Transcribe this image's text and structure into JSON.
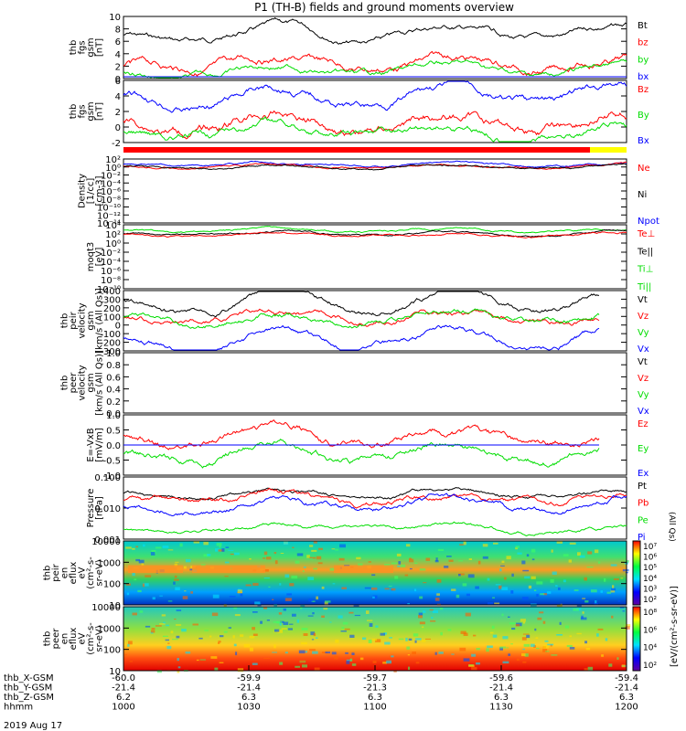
{
  "title": "P1 (TH-B) fields and ground moments overview",
  "date_label": "2019 Aug 17",
  "colors": {
    "black": "#000000",
    "red": "#ff0000",
    "green": "#00dd00",
    "blue": "#0000ff",
    "yellow": "#ffff00"
  },
  "bottom_axis": {
    "rows": [
      {
        "label": "thb_X-GSM",
        "values": [
          "-60.0",
          "-59.9",
          "-59.7",
          "-59.6",
          "-59.4"
        ]
      },
      {
        "label": "thb_Y-GSM",
        "values": [
          "-21.4",
          "-21.4",
          "-21.3",
          "-21.4",
          "-21.4"
        ]
      },
      {
        "label": "thb_Z-GSM",
        "values": [
          "6.2",
          "6.3",
          "6.3",
          "6.3",
          "6.3"
        ]
      },
      {
        "label": "hhmm",
        "values": [
          "1000",
          "1030",
          "1100",
          "1130",
          "1200"
        ]
      }
    ]
  },
  "panels": [
    {
      "id": "fgs",
      "ylabel": [
        "thb",
        "fgs",
        "gsm",
        "[nT]"
      ],
      "ticks": [
        "10",
        "8",
        "6",
        "4",
        "2",
        "0"
      ],
      "legend": [
        {
          "text": "Bt",
          "color": "black"
        },
        {
          "text": "bz",
          "color": "red"
        },
        {
          "text": "by",
          "color": "green"
        },
        {
          "text": "bx",
          "color": "blue"
        }
      ]
    },
    {
      "id": "fgl",
      "ylabel": [
        "thb",
        "fgs",
        "gsm",
        "[nT]"
      ],
      "ticks": [
        "6",
        "4",
        "2",
        "0",
        "-2"
      ],
      "legend": [
        {
          "text": "Bz",
          "color": "red"
        },
        {
          "text": "By",
          "color": "green"
        },
        {
          "text": "Bx",
          "color": "blue"
        }
      ]
    },
    {
      "id": "density",
      "ylabel": [
        "Density",
        "[1/cc]",
        "[cm-3]"
      ],
      "ticks": [
        "10²",
        "10⁰",
        "10⁻²",
        "10⁻⁴",
        "10⁻⁶",
        "10⁻⁸",
        "10⁻¹⁰",
        "10⁻¹²",
        "10⁻¹⁴"
      ],
      "legend": [
        {
          "text": "Ne",
          "color": "red"
        },
        {
          "text": "Ni",
          "color": "black"
        },
        {
          "text": "Npot",
          "color": "blue"
        }
      ]
    },
    {
      "id": "temp",
      "ylabel": [
        "moqt3",
        "[eV]"
      ],
      "ticks": [
        "10⁴",
        "10²",
        "10⁰",
        "10⁻²",
        "10⁻⁴",
        "10⁻⁶",
        "10⁻⁸",
        "10⁻¹⁰"
      ],
      "legend": [
        {
          "text": "Te⊥",
          "color": "red"
        },
        {
          "text": "Te||",
          "color": "black"
        },
        {
          "text": "Ti⊥",
          "color": "green"
        },
        {
          "text": "Ti||",
          "color": "green"
        }
      ]
    },
    {
      "id": "vel1",
      "ylabel": [
        "thb",
        "peir",
        "velocity",
        "gsm",
        "[km/s (All Qs)]"
      ],
      "ticks": [
        "400",
        "300",
        "200",
        "100",
        "0",
        "-100",
        "-200",
        "-300"
      ],
      "legend": [
        {
          "text": "Vt",
          "color": "black"
        },
        {
          "text": "Vz",
          "color": "red"
        },
        {
          "text": "Vy",
          "color": "green"
        },
        {
          "text": "Vx",
          "color": "blue"
        }
      ]
    },
    {
      "id": "vel2",
      "ylabel": [
        "thb",
        "peer",
        "velocity",
        "gsm",
        "[km/s (All Qs)]"
      ],
      "ticks": [
        "1.0",
        "0.8",
        "0.6",
        "0.4",
        "0.2",
        "0.0"
      ],
      "legend": [
        {
          "text": "Vt",
          "color": "black"
        },
        {
          "text": "Vz",
          "color": "red"
        },
        {
          "text": "Vy",
          "color": "green"
        },
        {
          "text": "Vx",
          "color": "blue"
        }
      ]
    },
    {
      "id": "efield",
      "ylabel": [
        "E=-VxB",
        "[mV/m]"
      ],
      "ticks": [
        "1.0",
        "0.5",
        "0.0",
        "-0.5",
        "-1.0"
      ],
      "legend": [
        {
          "text": "Ez",
          "color": "red"
        },
        {
          "text": "Ey",
          "color": "green"
        },
        {
          "text": "Ex",
          "color": "blue"
        }
      ]
    },
    {
      "id": "pressure",
      "ylabel": [
        "Pressure",
        "[nPa]"
      ],
      "ticks": [
        "0.100",
        "0.010",
        "0.001"
      ],
      "legend": [
        {
          "text": "Pt",
          "color": "black"
        },
        {
          "text": "Pb",
          "color": "red"
        },
        {
          "text": "Pe",
          "color": "green"
        },
        {
          "text": "Pi",
          "color": "blue"
        }
      ],
      "side_note": "(All Qs)"
    },
    {
      "id": "ispec",
      "ylabel": [
        "thb",
        "peir",
        "en",
        "eflux",
        "eV",
        "(cm²-s-",
        "sr-eV)"
      ],
      "ticks": [
        "10000",
        "1000",
        "100",
        "10"
      ]
    },
    {
      "id": "espec",
      "ylabel": [
        "thb",
        "peer",
        "en",
        "eflux",
        "eV",
        "(cm²-s-",
        "sr-eV)"
      ],
      "ticks": [
        "10000",
        "1000",
        "100",
        "10"
      ]
    }
  ],
  "colorbars": [
    {
      "ticks": [
        "10⁷",
        "10⁶",
        "10⁵",
        "10⁴",
        "10³",
        "10²"
      ],
      "label": "[eV/(cm²-s-sr-eV)]"
    },
    {
      "ticks": [
        "10⁸",
        "10⁶",
        "10⁴",
        "10²"
      ],
      "label": "[eV/(cm²-s-sr-eV)]"
    }
  ],
  "chart_data": {
    "type": "line",
    "title": "P1 (TH-B) fields and ground moments overview",
    "x_axis": {
      "label": "hhmm",
      "ticks": [
        "1000",
        "1030",
        "1100",
        "1130",
        "1200"
      ],
      "range": [
        "1000",
        "1200"
      ]
    },
    "series": [
      {
        "name": "Bt",
        "panel": "fgs",
        "color": "black",
        "x": [
          1000,
          1015,
          1030,
          1045,
          1100,
          1115,
          1130,
          1145,
          1200
        ],
        "values": [
          7,
          6.5,
          7.5,
          7,
          7.2,
          7.5,
          8,
          8.5,
          8
        ]
      },
      {
        "name": "bz",
        "panel": "fgs",
        "color": "red",
        "x": [
          1000,
          1030,
          1100,
          1130,
          1200
        ],
        "values": [
          1.5,
          2,
          1.5,
          2,
          2.5
        ]
      },
      {
        "name": "by",
        "panel": "fgs",
        "color": "green",
        "x": [
          1000,
          1030,
          1100,
          1130,
          1200
        ],
        "values": [
          0.5,
          1,
          0.7,
          1,
          1
        ]
      },
      {
        "name": "bx",
        "panel": "fgs",
        "color": "blue",
        "x": [
          1000,
          1200
        ],
        "values": [
          0,
          0
        ]
      },
      {
        "name": "Bx",
        "panel": "fgl",
        "color": "blue",
        "x": [
          1000,
          1015,
          1030,
          1045,
          1100,
          1115,
          1130,
          1145,
          1200
        ],
        "values": [
          4,
          3.5,
          4,
          4.5,
          4,
          3,
          4.5,
          5,
          5
        ]
      },
      {
        "name": "Bz",
        "panel": "fgl",
        "color": "red",
        "x": [
          1000,
          1030,
          1100,
          1130,
          1200
        ],
        "values": [
          0.5,
          1,
          0.5,
          1,
          2
        ]
      },
      {
        "name": "By",
        "panel": "fgl",
        "color": "green",
        "x": [
          1000,
          1030,
          1100,
          1130,
          1200
        ],
        "values": [
          -0.5,
          0,
          -0.5,
          -0.5,
          0
        ]
      },
      {
        "name": "Vt",
        "panel": "vel1",
        "color": "black",
        "x": [
          1000,
          1020,
          1040,
          1100,
          1120,
          1140,
          1150
        ],
        "values": [
          250,
          300,
          280,
          280,
          250,
          200,
          150
        ]
      },
      {
        "name": "Vz",
        "panel": "vel1",
        "color": "red",
        "x": [
          1000,
          1030,
          1100,
          1130,
          1150
        ],
        "values": [
          -10,
          0,
          -20,
          0,
          0
        ]
      },
      {
        "name": "Vy",
        "panel": "vel1",
        "color": "green",
        "x": [
          1000,
          1030,
          1100,
          1130,
          1150
        ],
        "values": [
          0,
          0,
          10,
          0,
          -10
        ]
      },
      {
        "name": "Vx",
        "panel": "vel1",
        "color": "blue",
        "x": [
          1000,
          1020,
          1040,
          1100,
          1120,
          1140,
          1150
        ],
        "values": [
          -250,
          -300,
          -270,
          -270,
          -250,
          -150,
          -100
        ]
      },
      {
        "name": "Ez",
        "panel": "efield",
        "color": "red",
        "x": [
          1000,
          1020,
          1035,
          1100,
          1120,
          1140,
          1155
        ],
        "values": [
          0.1,
          0.3,
          0.5,
          0.2,
          0.4,
          0.1,
          0.1
        ]
      },
      {
        "name": "Ey",
        "panel": "efield",
        "color": "green",
        "x": [
          1000,
          1020,
          1035,
          1100,
          1120,
          1140,
          1155
        ],
        "values": [
          -0.1,
          -0.2,
          -0.4,
          -0.2,
          -0.3,
          -0.1,
          -0.2
        ]
      },
      {
        "name": "Ex",
        "panel": "efield",
        "color": "blue",
        "x": [
          1000,
          1155
        ],
        "values": [
          0,
          0
        ]
      },
      {
        "name": "Pt",
        "panel": "pressure",
        "color": "black",
        "x": [
          1000,
          1200
        ],
        "values": [
          0.03,
          0.035
        ]
      },
      {
        "name": "Pb",
        "panel": "pressure",
        "color": "red",
        "x": [
          1000,
          1200
        ],
        "values": [
          0.02,
          0.025
        ]
      },
      {
        "name": "Pi",
        "panel": "pressure",
        "color": "blue",
        "x": [
          1000,
          1200
        ],
        "values": [
          0.015,
          0.008
        ]
      },
      {
        "name": "Pe",
        "panel": "pressure",
        "color": "green",
        "x": [
          1000,
          1200
        ],
        "values": [
          0.002,
          0.002
        ]
      }
    ]
  }
}
